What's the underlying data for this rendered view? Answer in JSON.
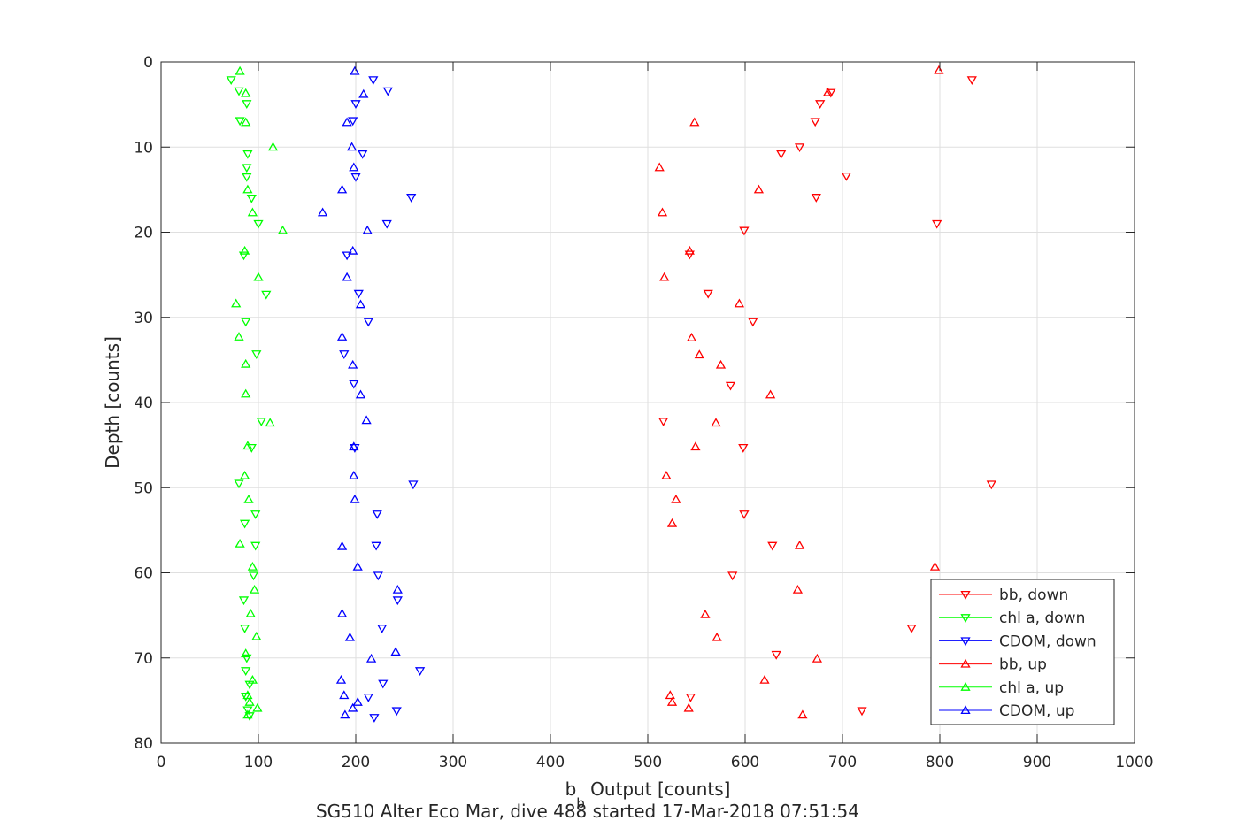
{
  "chart_data": {
    "type": "scatter",
    "title": "",
    "xlabel_prefix": "b",
    "xlabel_sub": "b",
    "xlabel_suffix": " Output [counts]",
    "ylabel": "Depth [counts]",
    "caption": "SG510 Alter Eco Mar, dive 488 started 17-Mar-2018 07:51:54",
    "xlim": [
      0,
      1000
    ],
    "ylim": [
      80,
      0
    ],
    "y_reversed": true,
    "grid": true,
    "legend_placement": "bottom-right",
    "x_ticks": [
      "0",
      "100",
      "200",
      "300",
      "400",
      "500",
      "600",
      "700",
      "800",
      "900",
      "1000"
    ],
    "y_ticks": [
      "0",
      "10",
      "20",
      "30",
      "40",
      "50",
      "60",
      "70",
      "80"
    ],
    "series": [
      {
        "name": "bb, down",
        "color": "#ff0000",
        "marker": "triangle-down",
        "points": [
          [
            833,
            2.1
          ],
          [
            688,
            3.6
          ],
          [
            677,
            4.9
          ],
          [
            672,
            7.0
          ],
          [
            656,
            10.0
          ],
          [
            637,
            10.8
          ],
          [
            704,
            13.4
          ],
          [
            673,
            15.9
          ],
          [
            797,
            19.0
          ],
          [
            599,
            19.8
          ],
          [
            543,
            22.6
          ],
          [
            562,
            27.2
          ],
          [
            608,
            30.5
          ],
          [
            585,
            38.0
          ],
          [
            516,
            42.2
          ],
          [
            598,
            45.3
          ],
          [
            853,
            49.6
          ],
          [
            599,
            53.1
          ],
          [
            628,
            56.8
          ],
          [
            587,
            60.3
          ],
          [
            771,
            66.5
          ],
          [
            632,
            69.6
          ],
          [
            544,
            74.6
          ],
          [
            720,
            76.2
          ]
        ]
      },
      {
        "name": "chl a, down",
        "color": "#00ff00",
        "marker": "triangle-down",
        "points": [
          [
            72,
            2.1
          ],
          [
            80,
            3.4
          ],
          [
            88,
            4.9
          ],
          [
            81,
            6.9
          ],
          [
            89,
            10.8
          ],
          [
            88,
            12.4
          ],
          [
            88,
            13.5
          ],
          [
            93,
            16.0
          ],
          [
            100,
            19.0
          ],
          [
            85,
            22.7
          ],
          [
            108,
            27.3
          ],
          [
            87,
            30.5
          ],
          [
            98,
            34.3
          ],
          [
            103,
            42.2
          ],
          [
            93,
            45.3
          ],
          [
            80,
            49.5
          ],
          [
            97,
            53.1
          ],
          [
            86,
            54.2
          ],
          [
            97,
            56.8
          ],
          [
            95,
            60.3
          ],
          [
            85,
            63.2
          ],
          [
            86,
            66.5
          ],
          [
            88,
            70.0
          ],
          [
            87,
            71.5
          ],
          [
            91,
            73.1
          ],
          [
            87,
            74.5
          ],
          [
            89,
            76.1
          ],
          [
            91,
            76.8
          ]
        ]
      },
      {
        "name": "CDOM, down",
        "color": "#0000ff",
        "marker": "triangle-down",
        "points": [
          [
            218,
            2.1
          ],
          [
            233,
            3.4
          ],
          [
            200,
            4.9
          ],
          [
            197,
            6.9
          ],
          [
            207,
            10.8
          ],
          [
            200,
            13.5
          ],
          [
            257,
            15.9
          ],
          [
            232,
            19.0
          ],
          [
            191,
            22.7
          ],
          [
            203,
            27.2
          ],
          [
            213,
            30.5
          ],
          [
            188,
            34.3
          ],
          [
            198,
            37.8
          ],
          [
            199,
            45.3
          ],
          [
            259,
            49.6
          ],
          [
            222,
            53.1
          ],
          [
            221,
            56.8
          ],
          [
            223,
            60.3
          ],
          [
            227,
            66.5
          ],
          [
            243,
            63.2
          ],
          [
            266,
            71.5
          ],
          [
            228,
            73.0
          ],
          [
            213,
            74.6
          ],
          [
            242,
            76.2
          ],
          [
            219,
            77.0
          ]
        ]
      },
      {
        "name": "bb, up",
        "color": "#ff0000",
        "marker": "triangle-up",
        "points": [
          [
            799,
            1.0
          ],
          [
            685,
            3.6
          ],
          [
            548,
            7.1
          ],
          [
            512,
            12.4
          ],
          [
            614,
            15.0
          ],
          [
            515,
            17.7
          ],
          [
            543,
            22.2
          ],
          [
            517,
            25.3
          ],
          [
            594,
            28.4
          ],
          [
            545,
            32.4
          ],
          [
            553,
            34.4
          ],
          [
            575,
            35.6
          ],
          [
            626,
            39.1
          ],
          [
            570,
            42.4
          ],
          [
            549,
            45.2
          ],
          [
            519,
            48.6
          ],
          [
            529,
            51.4
          ],
          [
            525,
            54.2
          ],
          [
            656,
            56.8
          ],
          [
            795,
            59.3
          ],
          [
            654,
            62.0
          ],
          [
            559,
            64.9
          ],
          [
            571,
            67.6
          ],
          [
            674,
            70.1
          ],
          [
            620,
            72.6
          ],
          [
            523,
            74.4
          ],
          [
            525,
            75.2
          ],
          [
            542,
            75.9
          ],
          [
            659,
            76.7
          ]
        ]
      },
      {
        "name": "chl a, up",
        "color": "#00ff00",
        "marker": "triangle-up",
        "points": [
          [
            81,
            1.1
          ],
          [
            87,
            3.7
          ],
          [
            87,
            7.1
          ],
          [
            115,
            10.0
          ],
          [
            89,
            15.0
          ],
          [
            94,
            17.7
          ],
          [
            125,
            19.8
          ],
          [
            86,
            22.2
          ],
          [
            100,
            25.3
          ],
          [
            77,
            28.4
          ],
          [
            80,
            32.3
          ],
          [
            87,
            35.5
          ],
          [
            87,
            39.0
          ],
          [
            112,
            42.4
          ],
          [
            89,
            45.1
          ],
          [
            86,
            48.6
          ],
          [
            90,
            51.4
          ],
          [
            81,
            56.6
          ],
          [
            94,
            59.3
          ],
          [
            96,
            62.0
          ],
          [
            92,
            64.8
          ],
          [
            98,
            67.5
          ],
          [
            87,
            69.5
          ],
          [
            94,
            72.6
          ],
          [
            89,
            74.4
          ],
          [
            91,
            75.2
          ],
          [
            99,
            75.9
          ],
          [
            89,
            76.7
          ]
        ]
      },
      {
        "name": "CDOM, up",
        "color": "#0000ff",
        "marker": "triangle-up",
        "points": [
          [
            199,
            1.1
          ],
          [
            208,
            3.8
          ],
          [
            191,
            7.1
          ],
          [
            196,
            10.0
          ],
          [
            198,
            12.4
          ],
          [
            186,
            15.0
          ],
          [
            166,
            17.7
          ],
          [
            212,
            19.8
          ],
          [
            197,
            22.2
          ],
          [
            191,
            25.3
          ],
          [
            205,
            28.5
          ],
          [
            186,
            32.3
          ],
          [
            197,
            35.6
          ],
          [
            205,
            39.1
          ],
          [
            211,
            42.1
          ],
          [
            198,
            45.2
          ],
          [
            198,
            48.6
          ],
          [
            199,
            51.4
          ],
          [
            186,
            56.9
          ],
          [
            202,
            59.3
          ],
          [
            243,
            62.0
          ],
          [
            186,
            64.8
          ],
          [
            194,
            67.6
          ],
          [
            241,
            69.3
          ],
          [
            216,
            70.1
          ],
          [
            185,
            72.6
          ],
          [
            188,
            74.4
          ],
          [
            202,
            75.2
          ],
          [
            197,
            75.9
          ],
          [
            189,
            76.7
          ]
        ]
      }
    ]
  }
}
